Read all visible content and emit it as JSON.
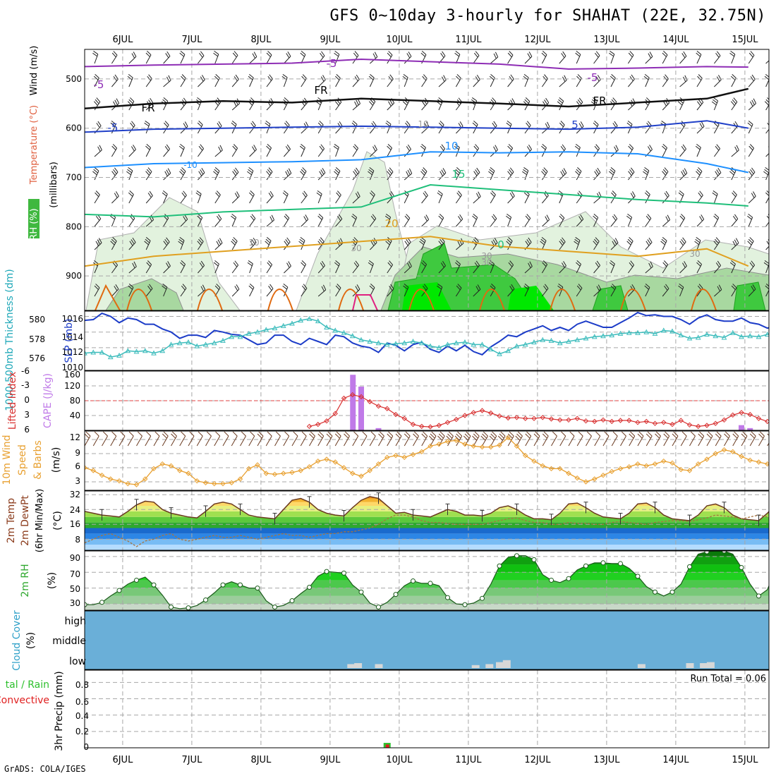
{
  "title": "GFS 0~10day 3-hourly for SHAHAT (22E, 32.75N)",
  "credit": "GrADS: COLA/IGES",
  "dates": [
    "6JUL",
    "7JUL",
    "8JUL",
    "9JUL",
    "10JUL",
    "11JUL",
    "12JUL",
    "13JUL",
    "14JUL",
    "15JUL"
  ],
  "chart_data": [
    {
      "type": "line",
      "panel": "upper-air",
      "ylabel_parts": [
        "RH (%)",
        "Temperature (°C)",
        "Wind (m/s)",
        "(millibars)"
      ],
      "y_ticks": [
        500,
        600,
        700,
        800,
        900
      ],
      "ylim": [
        440,
        970
      ],
      "isotherm_labels": [
        "-5",
        "-5",
        "FR",
        "FR",
        "FR",
        "-5",
        "5",
        "-5",
        "-10",
        "10",
        "15",
        "20",
        "10",
        "10",
        "30",
        "30",
        "0",
        "30",
        "30"
      ],
      "colors": {
        "minus5": "#8e2db5",
        "freezing": "#111111",
        "plus5": "#2040c8",
        "plus10": "#1e90ff",
        "plus15": "#1fbf7a",
        "plus20": "#e0a020",
        "plus25": "#e06a10",
        "rh": "#3fc93f"
      },
      "series": [
        {
          "name": "-5",
          "x": [
            0,
            1,
            2,
            3,
            4,
            5,
            6,
            7,
            8,
            9,
            9.6
          ],
          "values": [
            475,
            472,
            470,
            468,
            460,
            465,
            470,
            480,
            478,
            475,
            476
          ]
        },
        {
          "name": "FR",
          "x": [
            0,
            1,
            2,
            3,
            4,
            5,
            6,
            7,
            8,
            9,
            9.6
          ],
          "values": [
            560,
            550,
            545,
            548,
            540,
            545,
            550,
            556,
            548,
            540,
            520
          ]
        },
        {
          "name": "5",
          "x": [
            0,
            1,
            2,
            3,
            4,
            5,
            6,
            7,
            8,
            9,
            9.6
          ],
          "values": [
            608,
            602,
            600,
            598,
            596,
            598,
            600,
            602,
            598,
            585,
            600
          ]
        },
        {
          "name": "10",
          "x": [
            0,
            1,
            2,
            3,
            4,
            5,
            6,
            7,
            8,
            9,
            9.6
          ],
          "values": [
            680,
            672,
            670,
            668,
            664,
            648,
            650,
            648,
            652,
            672,
            690
          ]
        },
        {
          "name": "15",
          "x": [
            0,
            1,
            2,
            3,
            4,
            5,
            6,
            7,
            8,
            9,
            9.6
          ],
          "values": [
            775,
            780,
            770,
            765,
            760,
            715,
            725,
            735,
            745,
            752,
            758
          ]
        },
        {
          "name": "20",
          "x": [
            0,
            1,
            2,
            3,
            4,
            5,
            6,
            7,
            8,
            9,
            9.6
          ],
          "values": [
            880,
            860,
            850,
            840,
            830,
            820,
            840,
            850,
            860,
            845,
            880
          ]
        }
      ]
    },
    {
      "type": "line",
      "panel": "thickness-slp",
      "ylabel_left": "1000-500mb Thickness (dm)",
      "ylabel_right": "SLP (mb)",
      "left_ticks": [
        "580",
        "578",
        "576"
      ],
      "right_ticks": [
        "1016",
        "1014",
        "1012",
        "1010"
      ],
      "x_step": 0.125,
      "series": [
        {
          "name": "SLP",
          "color": "#1c3cc8",
          "values": [
            1015.5,
            1015.6,
            1016.4,
            1016.0,
            1015.2,
            1015.8,
            1015.6,
            1015.0,
            1015.0,
            1014.4,
            1014.0,
            1013.2,
            1013.6,
            1013.6,
            1013.3,
            1014.2,
            1014.0,
            1013.7,
            1013.6,
            1013.0,
            1012.4,
            1012.6,
            1013.6,
            1013.6,
            1012.8,
            1012.4,
            1013.2,
            1012.8,
            1012.4,
            1013.6,
            1013.4,
            1012.6,
            1012.2,
            1012.0,
            1011.4,
            1012.6,
            1012.3,
            1011.6,
            1012.4,
            1012.7,
            1011.8,
            1011.4,
            1012.2,
            1011.6,
            1012.3,
            1011.5,
            1011.1,
            1012.1,
            1012.8,
            1013.6,
            1013.4,
            1014.0,
            1014.4,
            1014.8,
            1014.2,
            1014.6,
            1014.2,
            1015.0,
            1015.4,
            1015.0,
            1014.6,
            1014.6,
            1015.2,
            1015.8,
            1016.5,
            1016.1,
            1016.2,
            1016.0,
            1016.0,
            1015.6,
            1015.0,
            1015.8,
            1016.2,
            1015.6,
            1015.4,
            1015.4,
            1015.8,
            1015.2,
            1015.0,
            1014.5,
            1014.8,
            1014.5,
            1013.2,
            1013.6
          ]
        },
        {
          "name": "Thickness",
          "color": "#3cbcbc",
          "values": [
            576.3,
            576.4,
            576.4,
            575.8,
            576.0,
            576.6,
            576.5,
            576.6,
            576.3,
            576.6,
            577.4,
            577.6,
            577.7,
            577.2,
            577.4,
            577.6,
            577.9,
            578.4,
            578.4,
            578.8,
            579.0,
            579.3,
            579.5,
            579.8,
            580.1,
            580.5,
            580.7,
            580.4,
            579.6,
            579.2,
            578.9,
            578.5,
            578.0,
            577.8,
            577.6,
            577.4,
            577.5,
            577.6,
            577.8,
            577.6,
            577.2,
            577.0,
            577.4,
            577.6,
            577.7,
            577.4,
            577.4,
            576.8,
            576.2,
            576.6,
            577.2,
            577.4,
            577.7,
            578.0,
            577.9,
            577.6,
            577.8,
            578.0,
            578.2,
            578.4,
            578.5,
            578.6,
            578.8,
            578.9,
            578.9,
            579.0,
            578.8,
            579.2,
            579.1,
            578.6,
            578.2,
            578.3,
            578.7,
            578.5,
            578.3,
            578.9,
            578.4,
            578.5,
            578.4,
            578.7,
            578.8,
            578.5,
            578.8,
            577.8
          ]
        }
      ]
    },
    {
      "type": "bar",
      "panel": "lifted-index-cape",
      "ylabel_left": "Lifted Index",
      "ylabel_right": "CAPE (J/kg)",
      "left_ticks": [
        "-6",
        "-3",
        "0",
        "3",
        "6"
      ],
      "right_ticks": [
        "160",
        "120",
        "80",
        "40"
      ],
      "cape_color": "#c07ae8",
      "li_color": "#d83030",
      "cape_bars": [
        {
          "x": 3.88,
          "value": 150
        },
        {
          "x": 4.0,
          "value": 118
        },
        {
          "x": 4.25,
          "value": 6
        },
        {
          "x": 9.5,
          "value": 14
        },
        {
          "x": 9.625,
          "value": 6
        }
      ],
      "lifted_index": {
        "x_start": 3.25,
        "x_step": 0.125,
        "values": [
          5.2,
          4.8,
          4.1,
          2.6,
          -0.5,
          -1.2,
          -0.8,
          0.2,
          1.1,
          1.6,
          2.8,
          3.6,
          4.8,
          5.2,
          5.3,
          5.0,
          4.4,
          3.8,
          3.0,
          2.4,
          2.0,
          2.5,
          3.1,
          3.5,
          3.4,
          3.6,
          3.6,
          3.4,
          3.7,
          3.9,
          3.9,
          3.6,
          4.1,
          4.2,
          3.9,
          4.2,
          4.0,
          4.0,
          4.4,
          4.2,
          4.6,
          4.4,
          4.8,
          4.0,
          4.9,
          5.2,
          5.0,
          4.6,
          3.9,
          2.9,
          2.4,
          2.8,
          3.6,
          4.2
        ]
      }
    },
    {
      "type": "line",
      "panel": "wind-speed",
      "ylabel": "10m Wind Speed & Barbs (m/s)",
      "y_ticks": [
        "12",
        "9",
        "6",
        "3"
      ],
      "line_color": "#e8a030",
      "x_step": 0.125,
      "values": [
        6.0,
        5.4,
        4.4,
        3.6,
        3.2,
        2.6,
        2.4,
        3.6,
        5.8,
        6.8,
        6.4,
        5.4,
        4.8,
        3.2,
        2.8,
        2.6,
        2.6,
        2.8,
        3.6,
        5.8,
        6.6,
        4.8,
        4.6,
        4.8,
        5.0,
        5.4,
        6.2,
        7.4,
        7.8,
        7.2,
        6.0,
        4.8,
        4.2,
        5.4,
        6.8,
        8.2,
        8.6,
        8.2,
        8.8,
        9.4,
        10.6,
        11.0,
        11.6,
        11.8,
        11.0,
        10.6,
        10.4,
        10.4,
        10.8,
        12.4,
        10.6,
        8.6,
        7.4,
        6.4,
        5.8,
        5.8,
        4.8,
        3.8,
        3.0,
        3.6,
        4.4,
        5.2,
        5.8,
        6.2,
        6.8,
        6.4,
        6.8,
        7.4,
        7.0,
        5.6,
        5.4,
        6.8,
        7.8,
        9.0,
        9.8,
        9.4,
        8.4,
        7.6,
        7.2,
        6.8,
        6.2,
        5.6,
        5.8,
        6.6
      ]
    },
    {
      "type": "area",
      "panel": "temperature",
      "ylabel": "2m Temp 2m DewPt (6hr Min/Max) (°C)",
      "y_ticks": [
        "32",
        "24",
        "16",
        "8"
      ],
      "ylim": [
        2,
        34
      ],
      "x_step": 0.125,
      "temperature": [
        23.0,
        22.0,
        21.0,
        20.5,
        20.0,
        23.0,
        26.5,
        28.5,
        28.0,
        24.0,
        22.0,
        21.0,
        20.0,
        19.5,
        23.0,
        27.0,
        28.0,
        27.0,
        24.0,
        21.0,
        20.0,
        19.5,
        19.0,
        24.0,
        29.0,
        30.0,
        28.0,
        24.0,
        22.0,
        21.0,
        20.5,
        25.0,
        29.0,
        31.0,
        30.0,
        26.0,
        22.0,
        22.5,
        21.0,
        20.5,
        20.0,
        22.0,
        24.0,
        23.0,
        21.0,
        21.0,
        20.5,
        22.0,
        25.0,
        26.0,
        24.0,
        21.0,
        19.0,
        19.0,
        18.5,
        22.0,
        27.0,
        27.5,
        25.0,
        22.0,
        20.0,
        19.5,
        19.0,
        22.0,
        27.0,
        27.5,
        25.0,
        21.0,
        19.0,
        18.5,
        18.0,
        21.0,
        26.0,
        27.0,
        25.0,
        21.0,
        19.0,
        18.5,
        18.0,
        22.0,
        27.0,
        27.5,
        25.0,
        22.0
      ],
      "dewpoint": [
        6.0,
        8.0,
        10.0,
        11.0,
        9.0,
        7.0,
        4.0,
        7.0,
        8.0,
        10.0,
        11.0,
        8.0,
        7.0,
        8.0,
        9.0,
        10.0,
        9.0,
        9.0,
        10.0,
        9.0,
        8.0,
        9.0,
        10.0,
        11.0,
        10.0,
        10.0,
        9.0,
        10.0,
        11.0,
        11.0,
        12.0,
        12.0,
        13.0,
        14.0,
        16.0,
        19.0,
        21.0,
        21.0,
        20.0,
        18.0,
        17.0,
        17.0,
        16.5,
        16.0,
        16.0,
        16.0,
        16.0,
        17.0,
        18.0,
        19.0,
        19.5,
        18.0,
        17.0,
        17.0,
        16.0,
        16.0,
        17.0,
        16.5,
        16.5,
        16.0,
        16.0,
        17.0,
        17.5,
        17.0,
        16.5,
        16.0,
        17.0,
        17.5,
        18.0,
        18.0,
        17.5,
        18.5,
        19.5,
        21.0,
        20.5,
        20.0,
        19.0,
        20.0,
        21.0,
        20.0,
        19.0,
        19.5,
        20.0,
        20.5
      ],
      "fill_colors": [
        "#b4dcff",
        "#78bcf4",
        "#2c86e6",
        "#1a6acd",
        "#2ea82e",
        "#5cc83c",
        "#a0e050",
        "#e6f080",
        "#ffd868",
        "#f4b430",
        "#ea8a18",
        "#e05a10"
      ],
      "line_colors": {
        "temperature": "#6a3a20",
        "dewpoint": "#a67440"
      }
    },
    {
      "type": "area",
      "panel": "relative-humidity",
      "ylabel": "2m RH (%)",
      "y_ticks": [
        "90",
        "70",
        "50",
        "30"
      ],
      "ylim": [
        22,
        97
      ],
      "x_step": 0.125,
      "values": [
        29,
        29,
        32,
        40,
        47,
        55,
        60,
        64,
        54,
        41,
        26,
        24,
        25,
        28,
        35,
        44,
        54,
        58,
        54,
        50,
        50,
        34,
        26,
        28,
        34,
        43,
        51,
        65,
        71,
        70,
        69,
        54,
        45,
        31,
        26,
        32,
        42,
        53,
        59,
        56,
        56,
        53,
        38,
        30,
        29,
        31,
        37,
        55,
        78,
        89,
        91,
        91,
        86,
        67,
        60,
        57,
        62,
        73,
        78,
        82,
        82,
        81,
        81,
        75,
        65,
        52,
        45,
        40,
        45,
        55,
        77,
        93,
        96,
        97,
        97,
        93,
        76,
        55,
        40,
        48,
        75,
        81,
        85,
        87,
        78,
        53,
        40,
        39
      ]
    },
    {
      "type": "bar",
      "panel": "cloud-cover",
      "ylabel": "Cloud Cover (%)",
      "levels": [
        "high",
        "middle",
        "low"
      ],
      "background_color": "#6aafd8",
      "low_cloud_color": "#d8d8d8",
      "low_cloud_bars": [
        {
          "x": 3.85,
          "value": 40
        },
        {
          "x": 3.95,
          "value": 50
        },
        {
          "x": 4.25,
          "value": 40
        },
        {
          "x": 5.65,
          "value": 30
        },
        {
          "x": 5.85,
          "value": 40
        },
        {
          "x": 6.0,
          "value": 60
        },
        {
          "x": 6.1,
          "value": 80
        },
        {
          "x": 8.05,
          "value": 40
        },
        {
          "x": 8.75,
          "value": 50
        },
        {
          "x": 8.95,
          "value": 50
        },
        {
          "x": 9.05,
          "value": 60
        }
      ]
    },
    {
      "type": "bar",
      "panel": "precipitation",
      "ylabel": "3hr Precip (mm)",
      "legend_left": [
        "tal / Rain",
        "Convective"
      ],
      "legend_colors": {
        "total": "#2ec02e",
        "convective": "#e02020"
      },
      "y_ticks": [
        "0.8",
        "0.6",
        "0.4",
        "0.2",
        "0"
      ],
      "ylim": [
        0,
        0.95
      ],
      "run_total": "Run Total = 0.06",
      "bars": [
        {
          "x": 4.375,
          "total": 0.06,
          "convective": 0.04
        }
      ]
    }
  ]
}
